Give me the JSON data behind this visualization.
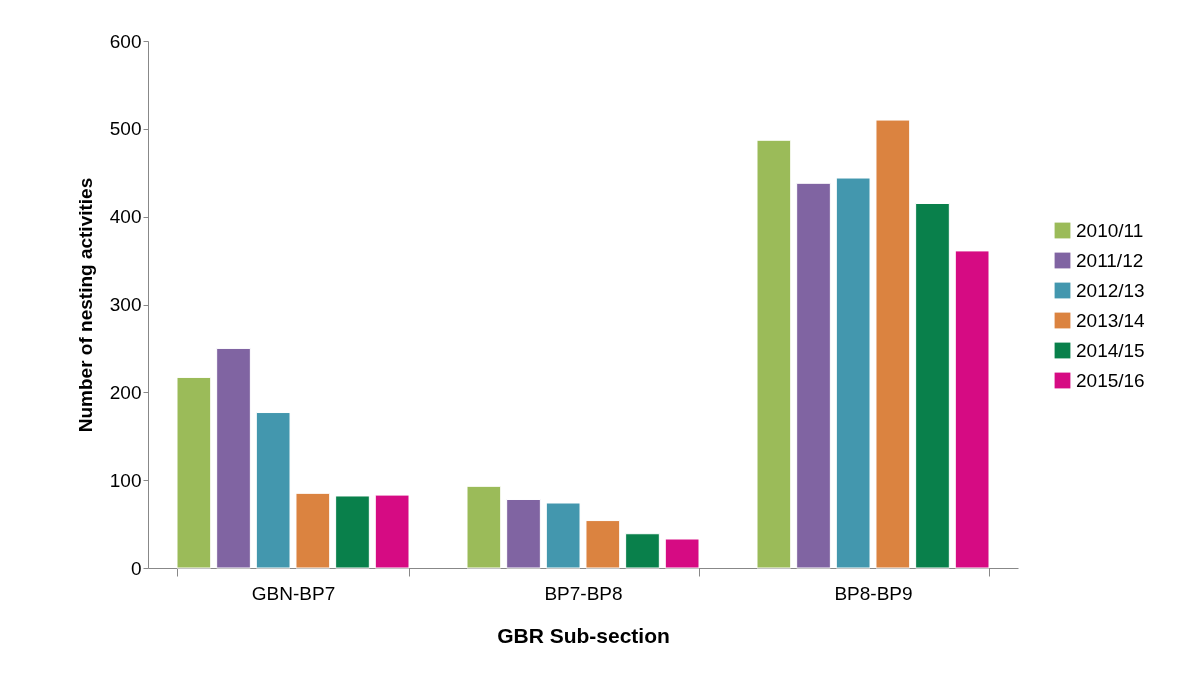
{
  "chart_data": {
    "type": "bar",
    "xlabel": "GBR Sub-section",
    "ylabel": "Number of nesting activities",
    "categories": [
      "GBN-BP7",
      "BP7-BP8",
      "BP8-BP9"
    ],
    "series": [
      {
        "name": "2010/11",
        "color": "#9bbb59",
        "values": [
          217,
          93,
          487
        ]
      },
      {
        "name": "2011/12",
        "color": "#8064a2",
        "values": [
          250,
          78,
          438
        ]
      },
      {
        "name": "2012/13",
        "color": "#4397ae",
        "values": [
          177,
          74,
          444
        ]
      },
      {
        "name": "2013/14",
        "color": "#db8340",
        "values": [
          85,
          54,
          510
        ]
      },
      {
        "name": "2014/15",
        "color": "#09804b",
        "values": [
          82,
          39,
          415
        ]
      },
      {
        "name": "2015/16",
        "color": "#d60b83",
        "values": [
          83,
          33,
          361
        ]
      }
    ],
    "ylim": [
      0,
      600
    ],
    "yticks": [
      0,
      100,
      200,
      300,
      400,
      500,
      600
    ],
    "grid": false,
    "legend": "right"
  }
}
